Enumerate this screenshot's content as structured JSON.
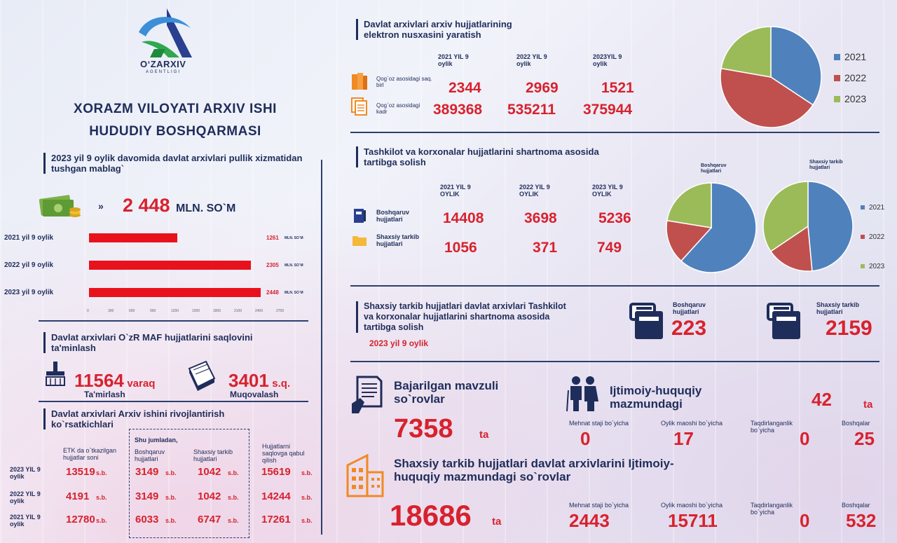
{
  "logo": {
    "name": "O‘ZARXIV",
    "sub": "AGENTLIGI"
  },
  "header": {
    "line1": "XORAZM VILOYATI ARXIV ISHI",
    "line2": "HUDUDIY BOSHQARMASI"
  },
  "revenue": {
    "title": "2023 yil 9 oylik davomida davlat arxivlari pullik xizmatidan tushgan mablag`",
    "total_value": "2 448",
    "total_unit": "MLN. SO`M",
    "rows": [
      {
        "label": "2021 yil 9 oylik",
        "value": 1261,
        "value_text": "1261",
        "unit": "MLN. SO`M"
      },
      {
        "label": "2022 yil 9 oylik",
        "value": 2305,
        "value_text": "2305",
        "unit": "MLN. SO`M"
      },
      {
        "label": "2023 yil 9 oylik",
        "value": 2448,
        "value_text": "2448",
        "unit": "MLN. SO`M"
      }
    ],
    "ticks": [
      "0",
      "300",
      "600",
      "900",
      "1200",
      "1500",
      "1800",
      "2100",
      "2400",
      "2700"
    ]
  },
  "maf": {
    "title": "Davlat arxivlari O`zR MAF hujjatlarini saqlovini ta'minlash",
    "repair_value": "11564",
    "repair_unit": "varaq",
    "repair_label": "Ta'mirlash",
    "binding_value": "3401",
    "binding_unit": "s.q.",
    "binding_label": "Muqovalash"
  },
  "dev": {
    "title": "Davlat arxivlari Arxiv ishini rivojlantirish ko`rsatkichlari",
    "col1": "ETK da o`tkazilgan hujjatlar soni",
    "group_title": "Shu jumladan,",
    "col2": "Boshqaruv hujjatlari",
    "col3": "Shaxsiy tarkib hujjatlari",
    "col4": "Hujjatlarni saqlovga qabul qilish",
    "unit": "s.b.",
    "rows": [
      {
        "year": "2023 YIL 9 oylik",
        "v1": "13519",
        "v2": "3149",
        "v3": "1042",
        "v4": "15619"
      },
      {
        "year": "2022 YIL 9 oylik",
        "v1": "4191",
        "v2": "3149",
        "v3": "1042",
        "v4": "14244"
      },
      {
        "year": "2021 YIL 9 oylik",
        "v1": "12780",
        "v2": "6033",
        "v3": "6747",
        "v4": "17261"
      }
    ]
  },
  "digital": {
    "title": "Davlat arxivlari arxiv hujjatlarining elektron nusxasini yaratish",
    "years": [
      "2021  YIL 9 oylik",
      "2022  YIL 9 oylik",
      "2023YIL 9 oylik"
    ],
    "row1_label": "Qog`oz asosidagi saq. birl",
    "row1": [
      "2344",
      "2969",
      "1521"
    ],
    "row2_label": "Qog`oz asosidagi kadr",
    "row2": [
      "389368",
      "535211",
      "375944"
    ],
    "legend": [
      "2021",
      "2022",
      "2023"
    ]
  },
  "contract": {
    "title": "Tashkilot va korxonalar hujjatlarini shartnoma asosida tartibga solish",
    "years": [
      "2021  YIL 9 OYLIK",
      "2022 YIL 9 OYLIK",
      "2023  YIL 9 OYLIK"
    ],
    "row1_label": "Boshqaruv hujjatlari",
    "row1": [
      "14408",
      "3698",
      "5236"
    ],
    "row2_label": "Shaxsiy tarkib hujjatlari",
    "row2": [
      "1056",
      "371",
      "749"
    ],
    "pie1_title": "Boshqaruv hujjatlari",
    "pie2_title": "Shaxsiy tarkib hujjatlari",
    "legend": [
      "2021",
      "2022",
      "2023"
    ]
  },
  "personnel": {
    "title": "Shaxsiy tarkib hujjatlari davlat arxivlari Tashkilot va korxonalar hujjatlarini shartnoma asosida tartibga solish",
    "period": "2023 yil 9 oylik",
    "box1_label": "Boshqaruv hujjatlari",
    "box1_value": "223",
    "box2_label": "Shaxsiy tarkib hujjatlari",
    "box2_value": "2159"
  },
  "queries": {
    "thematic_title": "Bajarilgan mavzuli so`rovlar",
    "thematic_value": "7358",
    "unit": "ta",
    "social_title": "Ijtimoiy-huquqiy mazmundagi",
    "social_value": "42",
    "cat1": "Mehnat staji bo`yicha",
    "cat2": "Oylik maoshi bo`yicha",
    "cat3": "Taqdirlanganlik bo`yicha",
    "cat4": "Boshqalar",
    "social_vals": [
      "0",
      "17",
      "0",
      "25"
    ],
    "personal_title": "Shaxsiy tarkib hujjatlari davlat arxivlarini Ijtimoiy-huquqiy mazmundagi so`rovlar",
    "personal_value": "18686",
    "personal_vals": [
      "2443",
      "15711",
      "0",
      "532"
    ]
  },
  "chart_data": [
    {
      "type": "bar",
      "categories": [
        "2021 yil 9 oylik",
        "2022 yil 9 oylik",
        "2023 yil 9 oylik"
      ],
      "values": [
        1261,
        2305,
        2448
      ],
      "title": "",
      "xlabel": "",
      "ylabel": "",
      "xlim": [
        0,
        2700
      ],
      "colors": [
        "#e8121d"
      ]
    },
    {
      "type": "pie",
      "categories": [
        "2021",
        "2022",
        "2023"
      ],
      "values": [
        2344,
        2969,
        1521
      ],
      "colors": [
        "#4f81bd",
        "#c0504d",
        "#9bbb59"
      ],
      "legend": "right"
    },
    {
      "type": "pie",
      "title": "Boshqaruv hujjatlari",
      "categories": [
        "2021",
        "2022",
        "2023"
      ],
      "values": [
        14408,
        3698,
        5236
      ],
      "colors": [
        "#4f81bd",
        "#c0504d",
        "#9bbb59"
      ],
      "legend": "right"
    },
    {
      "type": "pie",
      "title": "Shaxsiy tarkib hujjatlari",
      "categories": [
        "2021",
        "2022",
        "2023"
      ],
      "values": [
        1056,
        371,
        749
      ],
      "colors": [
        "#4f81bd",
        "#c0504d",
        "#9bbb59"
      ],
      "legend": "right"
    }
  ]
}
